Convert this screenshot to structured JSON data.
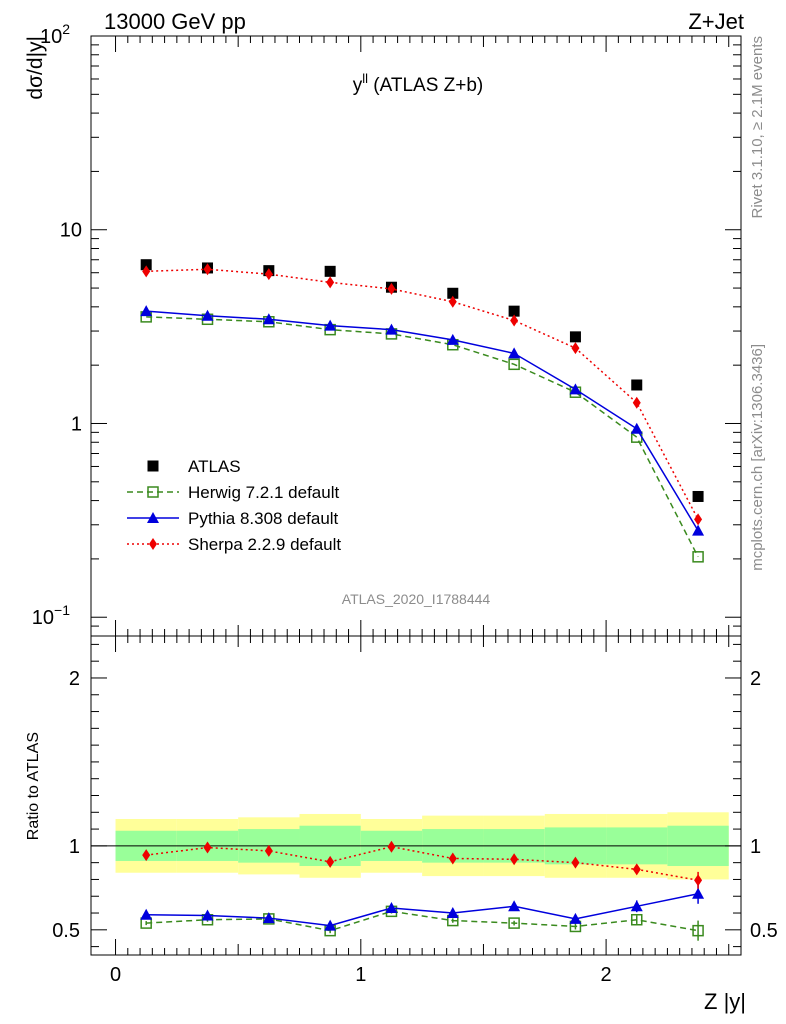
{
  "header": {
    "left": "13000 GeV pp",
    "right": "Z+Jet"
  },
  "side_labels": {
    "rivet": "Rivet 3.1.10, ≥ 2.1M events",
    "mcplots": "mcplots.cern.ch [arXiv:1306.3436]"
  },
  "colors": {
    "atlas": "#000000",
    "herwig": "#3a8a1e",
    "pythia": "#0000dd",
    "sherpa": "#ee0000",
    "band_inner": "#99ff99",
    "band_outer": "#ffff99"
  },
  "chart_data": [
    {
      "type": "scatter",
      "title_main": "y",
      "title_sup": "ll",
      "title_rest": " (ATLAS Z+b)",
      "watermark": "ATLAS_2020_I1788444",
      "ylabel": "dσ/d|y|",
      "yscale": "log",
      "ylim": [
        0.08,
        100
      ],
      "xlim": [
        -0.1,
        2.55
      ],
      "y_ticks": [
        {
          "value": 0.1,
          "label": "10",
          "sup": "−1"
        },
        {
          "value": 1,
          "label": "1",
          "sup": ""
        },
        {
          "value": 10,
          "label": "10",
          "sup": ""
        },
        {
          "value": 100,
          "label": "10",
          "sup": "2"
        }
      ],
      "x": [
        0.125,
        0.375,
        0.625,
        0.875,
        1.125,
        1.375,
        1.625,
        1.875,
        2.125,
        2.375
      ],
      "series": [
        {
          "name": "ATLAS",
          "key": "atlas",
          "marker": "square-filled",
          "line": "none",
          "values": [
            6.6,
            6.35,
            6.15,
            6.1,
            5.05,
            4.7,
            3.8,
            2.8,
            1.58,
            0.42
          ]
        },
        {
          "name": "Herwig 7.2.1 default",
          "key": "herwig",
          "marker": "square-open",
          "line": "dashed",
          "values": [
            3.55,
            3.45,
            3.35,
            3.05,
            2.9,
            2.55,
            2.02,
            1.45,
            0.85,
            0.205
          ]
        },
        {
          "name": "Pythia 8.308 default",
          "key": "pythia",
          "marker": "triangle",
          "line": "solid",
          "values": [
            3.8,
            3.6,
            3.45,
            3.2,
            3.05,
            2.7,
            2.3,
            1.5,
            0.94,
            0.28
          ]
        },
        {
          "name": "Sherpa 2.2.9 default",
          "key": "sherpa",
          "marker": "diamond",
          "line": "dotted",
          "values": [
            6.1,
            6.25,
            5.9,
            5.35,
            4.95,
            4.25,
            3.4,
            2.45,
            1.28,
            0.32
          ]
        }
      ],
      "legend": "bottom-left"
    },
    {
      "type": "scatter",
      "ylabel": "Ratio to ATLAS",
      "xlabel": "Z |y|",
      "ylim": [
        0.35,
        2.25
      ],
      "xlim": [
        -0.1,
        2.55
      ],
      "y_ticks": [
        0.5,
        1,
        2
      ],
      "x_ticks": [
        0,
        1,
        2
      ],
      "x_edges": [
        0.0,
        0.25,
        0.5,
        0.75,
        1.0,
        1.25,
        1.5,
        1.75,
        2.0,
        2.25,
        2.5
      ],
      "x": [
        0.125,
        0.375,
        0.625,
        0.875,
        1.125,
        1.375,
        1.625,
        1.875,
        2.125,
        2.375
      ],
      "band_inner": {
        "lo": [
          0.91,
          0.91,
          0.9,
          0.88,
          0.91,
          0.9,
          0.9,
          0.89,
          0.89,
          0.88
        ],
        "hi": [
          1.09,
          1.09,
          1.1,
          1.12,
          1.09,
          1.1,
          1.1,
          1.11,
          1.11,
          1.12
        ]
      },
      "band_outer": {
        "lo": [
          0.84,
          0.84,
          0.83,
          0.81,
          0.84,
          0.82,
          0.82,
          0.81,
          0.81,
          0.8
        ],
        "hi": [
          1.16,
          1.16,
          1.17,
          1.19,
          1.16,
          1.18,
          1.18,
          1.19,
          1.19,
          1.2
        ]
      },
      "series": [
        {
          "name": "Herwig 7.2.1 default",
          "key": "herwig",
          "values": [
            0.54,
            0.56,
            0.565,
            0.495,
            0.61,
            0.555,
            0.54,
            0.52,
            0.56,
            0.495
          ],
          "errors": [
            0.012,
            0.012,
            0.012,
            0.015,
            0.013,
            0.013,
            0.014,
            0.018,
            0.025,
            0.06
          ]
        },
        {
          "name": "Pythia 8.308 default",
          "key": "pythia",
          "values": [
            0.59,
            0.585,
            0.57,
            0.525,
            0.63,
            0.6,
            0.64,
            0.565,
            0.64,
            0.715
          ],
          "errors": [
            0.013,
            0.013,
            0.013,
            0.015,
            0.015,
            0.015,
            0.018,
            0.025,
            0.035,
            0.06
          ]
        },
        {
          "name": "Sherpa 2.2.9 default",
          "key": "sherpa",
          "values": [
            0.945,
            0.99,
            0.97,
            0.905,
            0.995,
            0.925,
            0.92,
            0.9,
            0.86,
            0.795
          ],
          "errors": [
            0.012,
            0.012,
            0.012,
            0.014,
            0.014,
            0.014,
            0.016,
            0.02,
            0.028,
            0.05
          ]
        }
      ]
    }
  ]
}
